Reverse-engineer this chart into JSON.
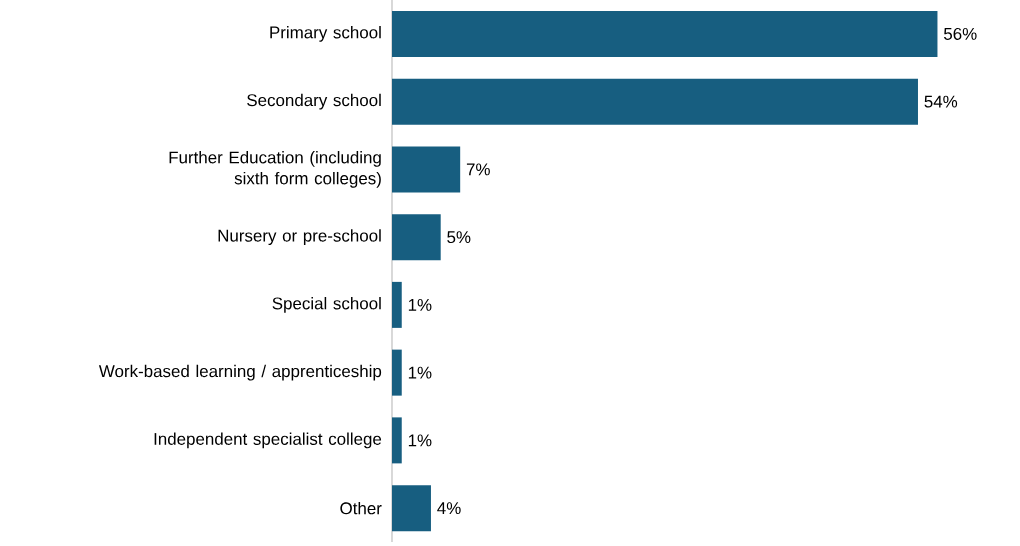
{
  "chart_data": {
    "type": "bar",
    "orientation": "horizontal",
    "categories": [
      "Primary school",
      "Secondary school",
      "Further Education (including sixth form colleges)",
      "Nursery or pre-school",
      "Special school",
      "Work-based learning / apprenticeship",
      "Independent specialist college",
      "Other"
    ],
    "values": [
      56,
      54,
      7,
      5,
      1,
      1,
      1,
      4
    ],
    "value_labels": [
      "56%",
      "54%",
      "7%",
      "5%",
      "1%",
      "1%",
      "1%",
      "4%"
    ],
    "color": "#175e80"
  }
}
